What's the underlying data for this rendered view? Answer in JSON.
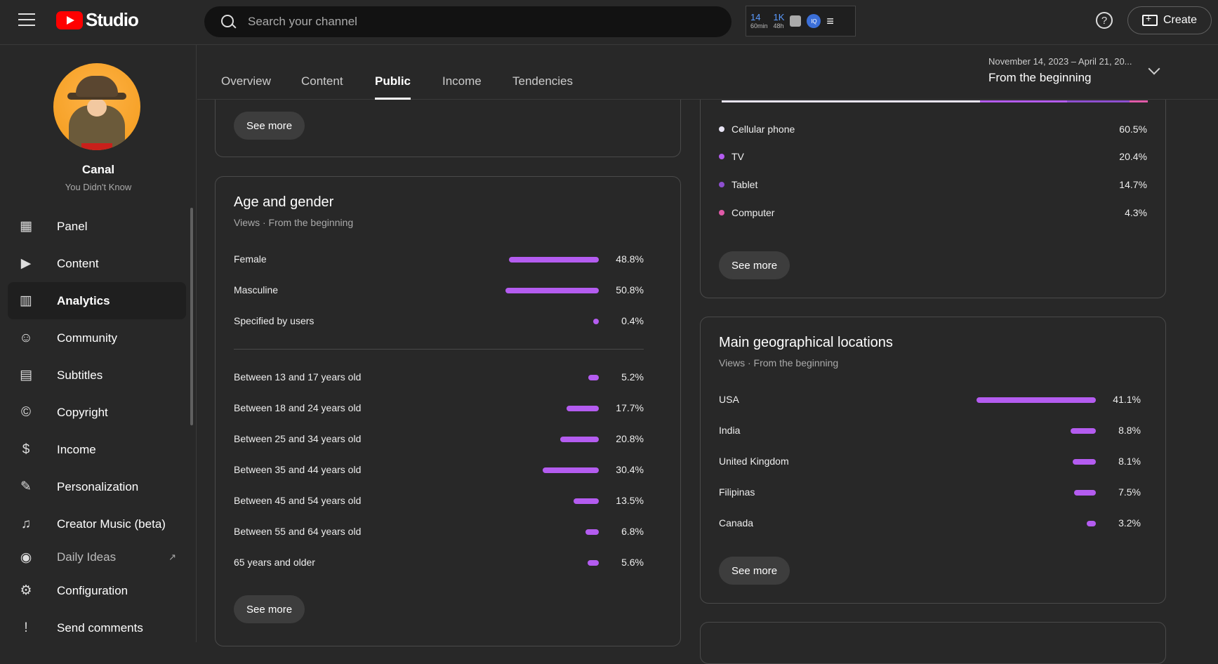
{
  "header": {
    "logo_text": "Studio",
    "search_placeholder": "Search your channel",
    "ext": {
      "stat1_value": "14",
      "stat1_unit": "60min",
      "stat2_value": "1K",
      "stat2_unit": "48h",
      "circle_label": "IQ"
    },
    "create_label": "Create"
  },
  "channel": {
    "name": "Canal",
    "subtitle": "You Didn't Know"
  },
  "sidebar": {
    "items": [
      {
        "label": "Panel",
        "icon": "dashboard-icon"
      },
      {
        "label": "Content",
        "icon": "content-icon"
      },
      {
        "label": "Analytics",
        "icon": "analytics-icon",
        "active": true
      },
      {
        "label": "Community",
        "icon": "community-icon"
      },
      {
        "label": "Subtitles",
        "icon": "subtitles-icon"
      },
      {
        "label": "Copyright",
        "icon": "copyright-icon"
      },
      {
        "label": "Income",
        "icon": "dollar-icon"
      },
      {
        "label": "Personalization",
        "icon": "wand-icon"
      },
      {
        "label": "Creator Music (beta)",
        "icon": "music-icon"
      },
      {
        "label": "Daily Ideas",
        "icon": "ideas-icon"
      },
      {
        "label": "Configuration",
        "icon": "gear-icon"
      },
      {
        "label": "Send comments",
        "icon": "feedback-icon"
      }
    ]
  },
  "tabs": [
    "Overview",
    "Content",
    "Public",
    "Income",
    "Tendencies"
  ],
  "active_tab": "Public",
  "date_range": {
    "range": "November 14, 2023 – April 21, 20...",
    "label": "From the beginning"
  },
  "see_more_label": "See more",
  "age_gender": {
    "title": "Age and gender",
    "subtitle": "Views · From the beginning",
    "gender": [
      {
        "label": "Female",
        "value": "48.8%",
        "pct": 48.8
      },
      {
        "label": "Masculine",
        "value": "50.8%",
        "pct": 50.8
      },
      {
        "label": "Specified by users",
        "value": "0.4%",
        "pct": 0.4
      }
    ],
    "age": [
      {
        "label": "Between 13 and 17 years old",
        "value": "5.2%",
        "pct": 5.2
      },
      {
        "label": "Between 18 and 24 years old",
        "value": "17.7%",
        "pct": 17.7
      },
      {
        "label": "Between 25 and 34 years old",
        "value": "20.8%",
        "pct": 20.8
      },
      {
        "label": "Between 35 and 44 years old",
        "value": "30.4%",
        "pct": 30.4
      },
      {
        "label": "Between 45 and 54 years old",
        "value": "13.5%",
        "pct": 13.5
      },
      {
        "label": "Between 55 and 64 years old",
        "value": "6.8%",
        "pct": 6.8
      },
      {
        "label": "65 years and older",
        "value": "5.6%",
        "pct": 5.6
      }
    ]
  },
  "devices": [
    {
      "label": "Cellular phone",
      "value": "60.5%",
      "color": "#e8e4f4"
    },
    {
      "label": "TV",
      "value": "20.4%",
      "color": "#b45cf0"
    },
    {
      "label": "Tablet",
      "value": "14.7%",
      "color": "#8e4fd0"
    },
    {
      "label": "Computer",
      "value": "4.3%",
      "color": "#e05aa8"
    }
  ],
  "geo": {
    "title": "Main geographical locations",
    "subtitle": "Views · From the beginning",
    "rows": [
      {
        "label": "USA",
        "value": "41.1%",
        "pct": 41.1
      },
      {
        "label": "India",
        "value": "8.8%",
        "pct": 8.8
      },
      {
        "label": "United Kingdom",
        "value": "8.1%",
        "pct": 8.1
      },
      {
        "label": "Filipinas",
        "value": "7.5%",
        "pct": 7.5
      },
      {
        "label": "Canada",
        "value": "3.2%",
        "pct": 3.2
      }
    ]
  },
  "colors": {
    "bar": "#b45cf0",
    "accent": "#ff0000"
  }
}
